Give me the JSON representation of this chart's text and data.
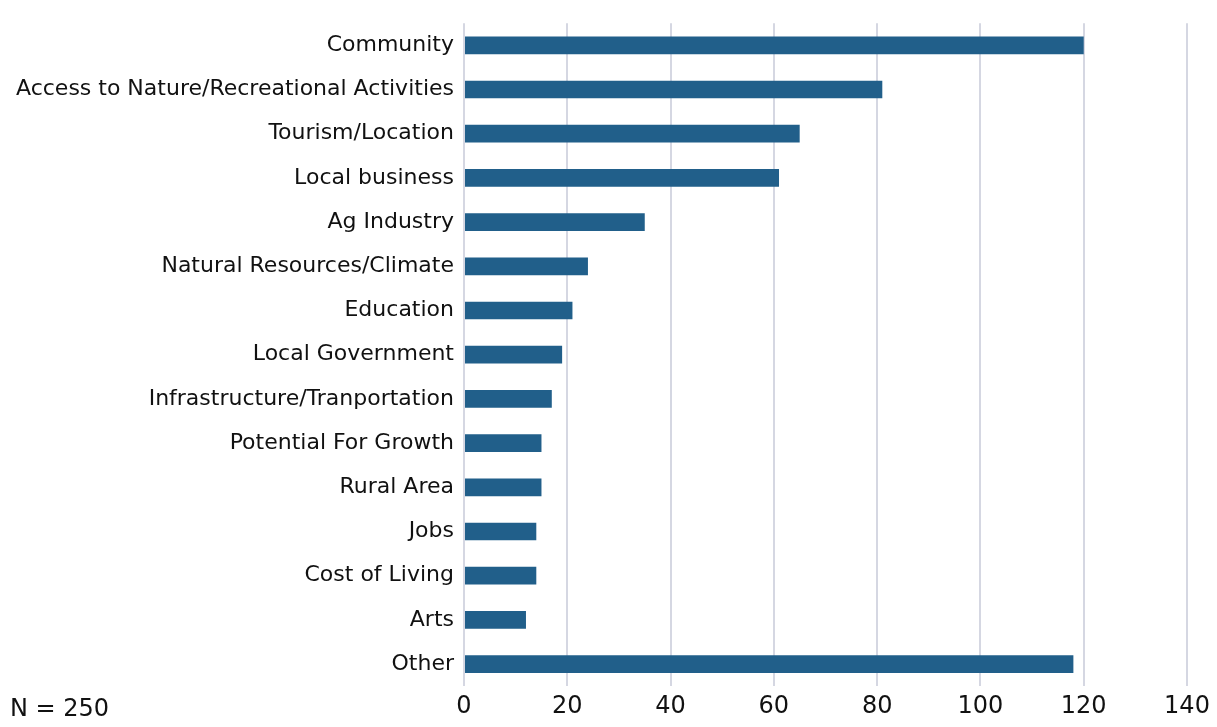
{
  "chart_data": {
    "type": "bar",
    "orientation": "horizontal",
    "categories": [
      "Community",
      "Access to Nature/Recreational Activities",
      "Tourism/Location",
      "Local business",
      "Ag Industry",
      "Natural Resources/Climate",
      "Education",
      "Local Government",
      "Infrastructure/Tranportation",
      "Potential For Growth",
      "Rural Area",
      "Jobs",
      "Cost of Living",
      "Arts",
      "Other"
    ],
    "values": [
      120,
      81,
      65,
      61,
      35,
      24,
      21,
      19,
      17,
      15,
      15,
      14,
      14,
      12,
      118
    ],
    "color": "#215f8a",
    "xlim": [
      0,
      140
    ],
    "xticks": [
      0,
      20,
      40,
      60,
      80,
      100,
      120,
      140
    ],
    "grid": "x",
    "legend": false,
    "annotations": [
      "N = 250"
    ]
  }
}
